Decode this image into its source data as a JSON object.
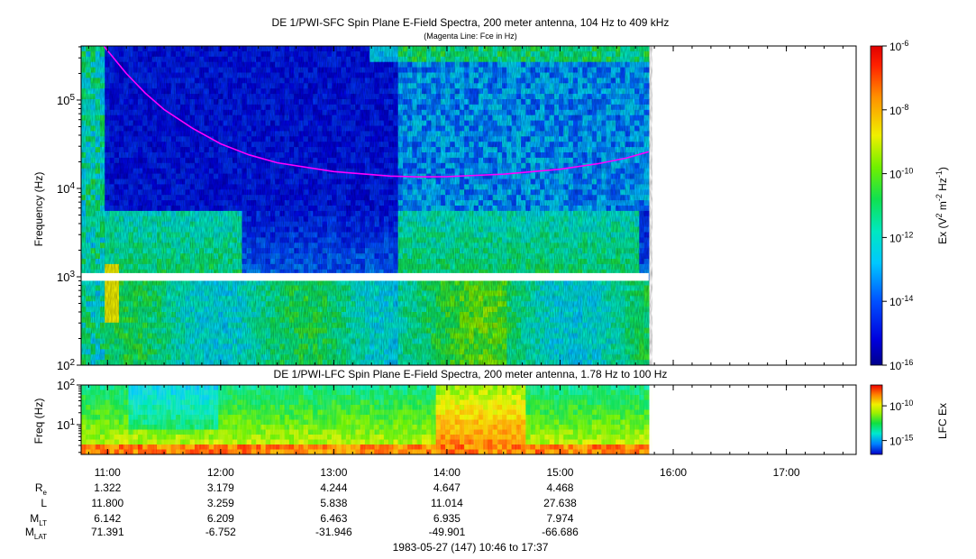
{
  "chart_data": [
    {
      "type": "heatmap",
      "title": "DE 1/PWI-SFC  Spin Plane E-Field Spectra, 200 meter antenna, 104 Hz to 409 kHz",
      "subtitle": "(Magenta Line: Fce in Hz)",
      "ylabel": "Frequency (Hz)",
      "yscale": "log",
      "ylim": [
        100,
        409000
      ],
      "yticks": [
        {
          "value": 100,
          "base": "10",
          "exp": "2"
        },
        {
          "value": 1000,
          "base": "10",
          "exp": "3"
        },
        {
          "value": 10000,
          "base": "10",
          "exp": "4"
        },
        {
          "value": 100000,
          "base": "10",
          "exp": "5"
        }
      ],
      "colorbar": {
        "label_pre": "Ex (V",
        "label_sup1": "2",
        "label_mid": " m",
        "label_sup2": "-2",
        "label_mid2": " Hz",
        "label_sup3": "-1",
        "label_post": ")",
        "scale": "log",
        "range": [
          1e-16,
          1e-06
        ],
        "ticks": [
          {
            "value": 1e-06,
            "base": "10",
            "exp": "-6"
          },
          {
            "value": 1e-08,
            "base": "10",
            "exp": "-8"
          },
          {
            "value": 1e-10,
            "base": "10",
            "exp": "-10"
          },
          {
            "value": 1e-12,
            "base": "10",
            "exp": "-12"
          },
          {
            "value": 1e-14,
            "base": "10",
            "exp": "-14"
          },
          {
            "value": 1e-16,
            "base": "10",
            "exp": "-16"
          }
        ]
      },
      "data_gap_hz": [
        900,
        1100
      ],
      "fce_line": {
        "name": "Fce",
        "color": "#ff00ff",
        "x": [
          "10:58",
          "11:10",
          "11:20",
          "11:30",
          "11:45",
          "12:00",
          "12:15",
          "12:30",
          "13:00",
          "13:30",
          "13:45",
          "14:00",
          "14:30",
          "15:00",
          "15:20",
          "15:35",
          "15:47"
        ],
        "y": [
          409000,
          200000,
          120000,
          78000,
          48000,
          32000,
          24000,
          19500,
          15500,
          13800,
          13500,
          13600,
          14500,
          16500,
          19000,
          22000,
          26000
        ]
      }
    },
    {
      "type": "heatmap",
      "title": "DE 1/PWI-LFC  Spin Plane E-Field Spectra, 200 meter antenna, 1.78 Hz to 100 Hz",
      "ylabel": "Freq (Hz)",
      "yscale": "log",
      "ylim": [
        1.78,
        100
      ],
      "yticks": [
        {
          "value": 10,
          "base": "10",
          "exp": "1"
        },
        {
          "value": 100,
          "base": "10",
          "exp": "2"
        }
      ],
      "colorbar": {
        "label": "LFC Ex",
        "scale": "log",
        "range": [
          1e-17,
          1e-07
        ],
        "ticks": [
          {
            "value": 1e-10,
            "base": "10",
            "exp": "-10"
          },
          {
            "value": 1e-15,
            "base": "10",
            "exp": "-15"
          }
        ]
      }
    }
  ],
  "x_axis": {
    "range": [
      "10:46",
      "17:37"
    ],
    "data_end": "15:47",
    "ticks": [
      "11:00",
      "12:00",
      "13:00",
      "14:00",
      "15:00",
      "16:00",
      "17:00"
    ],
    "caption": "1983-05-27 (147) 10:46 to 17:37"
  },
  "ephemeris": {
    "labels": [
      {
        "base": "R",
        "sub": "e"
      },
      {
        "base": "L",
        "sub": ""
      },
      {
        "base": "M",
        "sub": "LT"
      },
      {
        "base": "M",
        "sub": "LAT"
      }
    ],
    "columns": [
      "11:00",
      "12:00",
      "13:00",
      "14:00",
      "15:00"
    ],
    "rows": [
      [
        "1.322",
        "3.179",
        "4.244",
        "4.647",
        "4.468"
      ],
      [
        "11.800",
        "3.259",
        "5.838",
        "11.014",
        "27.638"
      ],
      [
        "6.142",
        "6.209",
        "6.463",
        "6.935",
        "7.974"
      ],
      [
        "71.391",
        "-6.752",
        "-31.946",
        "-49.901",
        "-66.686"
      ]
    ]
  }
}
